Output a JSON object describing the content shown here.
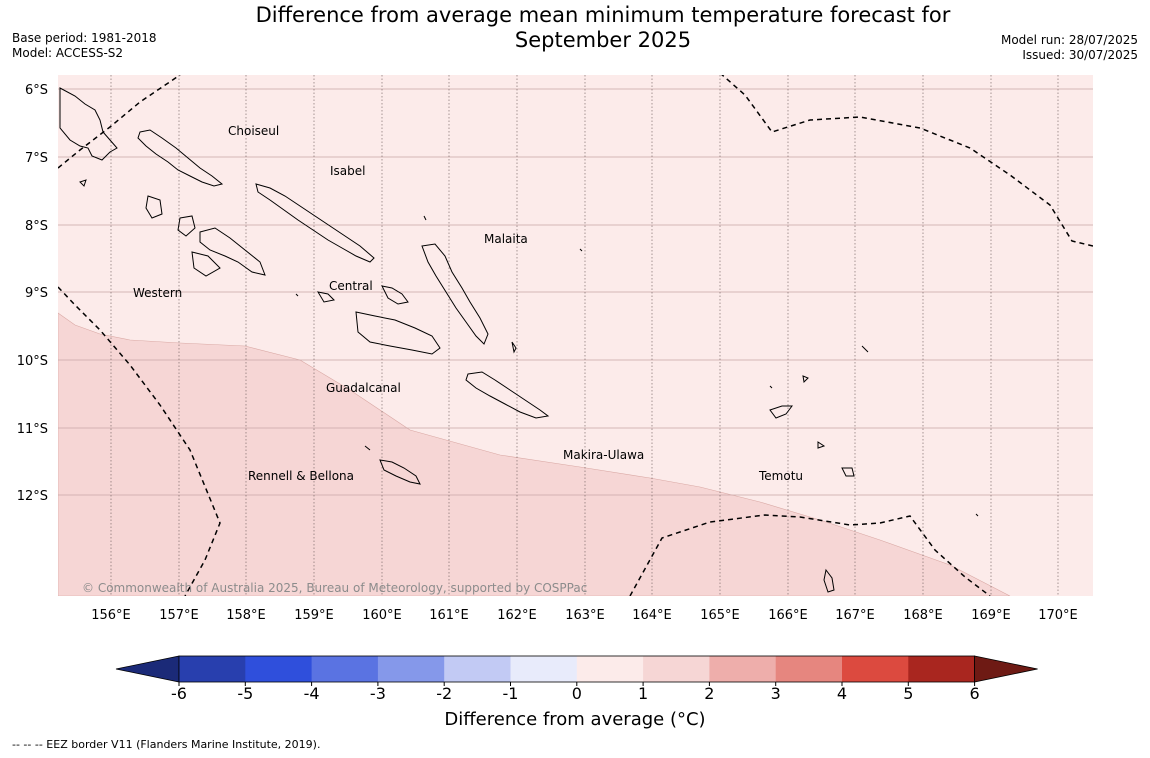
{
  "title_line1": "Difference from average mean minimum temperature forecast for",
  "title_line2": "September 2025",
  "meta_left": {
    "base_period": "Base period: 1981-2018",
    "model": "Model: ACCESS-S2"
  },
  "meta_right": {
    "model_run": "Model run: 28/07/2025",
    "issued": "Issued: 30/07/2025"
  },
  "map": {
    "lat_labels": [
      "6°S",
      "7°S",
      "8°S",
      "9°S",
      "10°S",
      "11°S",
      "12°S"
    ],
    "lon_labels": [
      "156°E",
      "157°E",
      "158°E",
      "159°E",
      "160°E",
      "161°E",
      "162°E",
      "163°E",
      "164°E",
      "165°E",
      "166°E",
      "167°E",
      "168°E",
      "169°E",
      "170°E"
    ],
    "province_labels": [
      "Choiseul",
      "Isabel",
      "Malaita",
      "Western",
      "Central",
      "Guadalcanal",
      "Makira-Ulawa",
      "Rennell & Bellona",
      "Temotu"
    ],
    "copyright": "© Commonwealth of Australia 2025, Bureau of Meteorology, supported by COSPPac",
    "fill_colors": {
      "zero_to_one": "#fcebea",
      "one_to_two": "#f6d6d5"
    }
  },
  "colorbar": {
    "tick_labels": [
      "-6",
      "-5",
      "-4",
      "-3",
      "-2",
      "-1",
      "0",
      "1",
      "2",
      "3",
      "4",
      "5",
      "6"
    ],
    "colors": [
      "#1b2a78",
      "#283fae",
      "#2f4fdc",
      "#5a73e2",
      "#8598ea",
      "#c2caf4",
      "#e8ebfb",
      "#fcebea",
      "#f6d6d5",
      "#eeaeab",
      "#e6867f",
      "#dc4a3f",
      "#a9261f",
      "#6e1a14"
    ],
    "title": "Difference from average (°C)"
  },
  "footnote": "--  --  -- EEZ border V11 (Flanders Marine Institute, 2019)."
}
